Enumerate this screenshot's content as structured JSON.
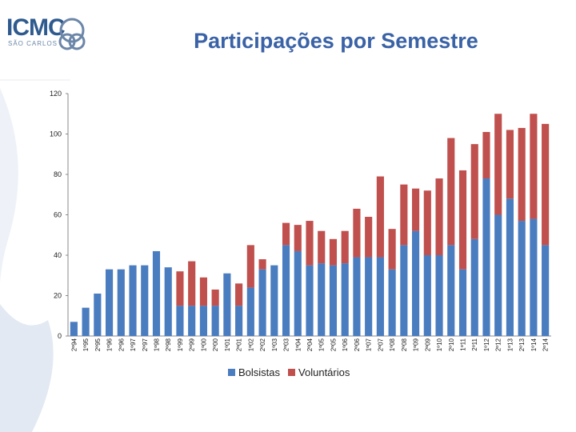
{
  "header": {
    "logo_text": "ICMC",
    "logo_subtitle": "SÃO CARLOS",
    "title": "Participações por Semestre"
  },
  "colors": {
    "bolsistas": "#4a7cc0",
    "voluntarios": "#c0504d",
    "title": "#3a62a6"
  },
  "chart_data": {
    "type": "bar",
    "stacked": true,
    "title": "Participações por Semestre",
    "xlabel": "",
    "ylabel": "",
    "ylim": [
      0,
      120
    ],
    "yticks": [
      0,
      20,
      40,
      60,
      80,
      100,
      120
    ],
    "grid": false,
    "legend_position": "bottom",
    "categories": [
      "2º94",
      "1º95",
      "2º95",
      "1º96",
      "2º96",
      "1º97",
      "2º97",
      "1º98",
      "2º98",
      "1º99",
      "2º99",
      "1º00",
      "2º00",
      "1º01",
      "2º01",
      "1º02",
      "2º02",
      "1º03",
      "2º03",
      "1º04",
      "2º04",
      "1º05",
      "2º05",
      "1º06",
      "2º06",
      "1º07",
      "2º07",
      "1º08",
      "2º08",
      "1º09",
      "2º09",
      "1º10",
      "2º10",
      "1º11",
      "2º11",
      "1º12",
      "2º12",
      "1º13",
      "2º13",
      "1º14",
      "2º14"
    ],
    "series": [
      {
        "name": "Bolsistas",
        "color": "#4a7cc0",
        "values": [
          7,
          14,
          21,
          33,
          33,
          35,
          35,
          42,
          34,
          15,
          15,
          15,
          15,
          31,
          15,
          24,
          33,
          35,
          45,
          42,
          35,
          36,
          35,
          36,
          39,
          39,
          39,
          33,
          45,
          52,
          40,
          40,
          45,
          33,
          48,
          78,
          60,
          68,
          57,
          58,
          45
        ]
      },
      {
        "name": "Voluntários",
        "color": "#c0504d",
        "values": [
          0,
          0,
          0,
          0,
          0,
          0,
          0,
          0,
          0,
          17,
          22,
          14,
          8,
          0,
          11,
          21,
          5,
          0,
          11,
          13,
          22,
          16,
          13,
          16,
          24,
          20,
          40,
          20,
          30,
          21,
          32,
          38,
          53,
          49,
          47,
          23,
          50,
          34,
          46,
          52,
          60
        ]
      }
    ]
  }
}
